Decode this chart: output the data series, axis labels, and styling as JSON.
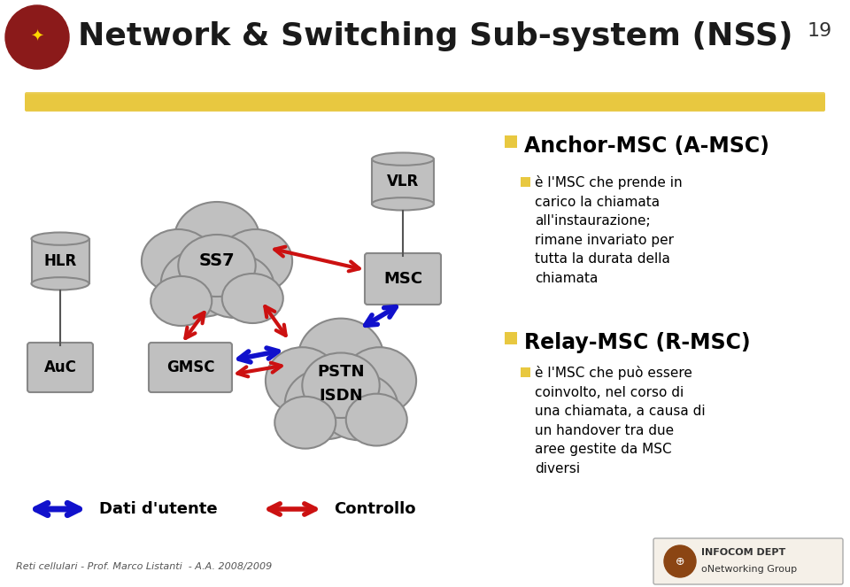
{
  "title": "Network & Switching Sub-system (NSS)",
  "slide_number": "19",
  "bg_color": "#FFFFFF",
  "anchor_title": "Anchor-MSC (A-MSC)",
  "anchor_bullet": "è l'MSC che prende in\ncarico la chiamata\nall'instaurazione;\nrimane invariato per\ntutta la durata della\nchiamata",
  "relay_title": "Relay-MSC (R-MSC)",
  "relay_bullet": "è l'MSC che può essere\ncoinvolto, nel corso di\nuna chiamata, a causa di\nun handover tra due\naree gestite da MSC\ndiversi",
  "legend_blue": "Dati d'utente",
  "legend_red": "Controllo",
  "footer": "Reti cellulari - Prof. Marco Listanti  - A.A. 2008/2009",
  "arrow_blue": "#1111CC",
  "arrow_red": "#CC1111",
  "node_fill": "#C0C0C0",
  "node_edge": "#888888",
  "yellow_color": "#E8C840",
  "title_color": "#1a1a1a"
}
